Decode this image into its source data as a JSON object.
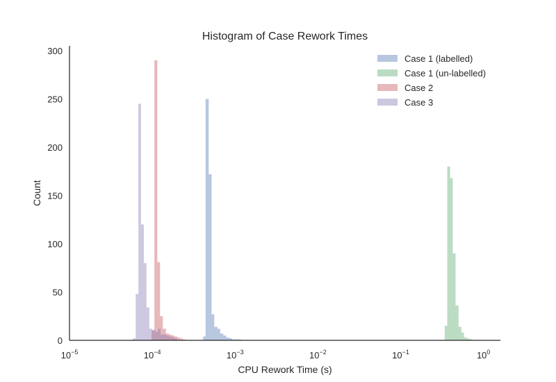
{
  "chart_data": {
    "type": "bar",
    "title": "Histogram of Case Rework Times",
    "xlabel": "CPU Rework Time (s)",
    "ylabel": "Count",
    "xscale": "log",
    "xlim": [
      1e-05,
      1.6
    ],
    "ylim": [
      0,
      305
    ],
    "x_ticks": [
      {
        "value": 1e-05,
        "base": "10",
        "exp": "−5"
      },
      {
        "value": 0.0001,
        "base": "10",
        "exp": "−4"
      },
      {
        "value": 0.001,
        "base": "10",
        "exp": "−3"
      },
      {
        "value": 0.01,
        "base": "10",
        "exp": "−2"
      },
      {
        "value": 0.1,
        "base": "10",
        "exp": "−1"
      },
      {
        "value": 1,
        "base": "10",
        "exp": "0"
      }
    ],
    "y_ticks": [
      "0",
      "50",
      "100",
      "150",
      "200",
      "250",
      "300"
    ],
    "grid": false,
    "legend_position": "top-right",
    "series": [
      {
        "name": "Case 1 (labelled)",
        "color": "#4c72b0",
        "bins": [
          [
            0.00041,
            0.00044,
            4
          ],
          [
            0.00044,
            0.00048,
            250
          ],
          [
            0.00048,
            0.00052,
            172
          ],
          [
            0.00052,
            0.00056,
            27
          ],
          [
            0.00056,
            0.00061,
            14
          ],
          [
            0.00061,
            0.00066,
            12
          ],
          [
            0.00066,
            0.00072,
            7
          ],
          [
            0.00072,
            0.00078,
            5
          ],
          [
            0.00078,
            0.00085,
            3
          ],
          [
            0.00085,
            0.00092,
            2
          ],
          [
            0.00092,
            0.001,
            1
          ],
          [
            0.001,
            0.00109,
            1
          ],
          [
            0.00109,
            0.00118,
            1
          ]
        ]
      },
      {
        "name": "Case 1 (un-labelled)",
        "color": "#55a868",
        "bins": [
          [
            0.34,
            0.365,
            15
          ],
          [
            0.365,
            0.395,
            180
          ],
          [
            0.395,
            0.425,
            168
          ],
          [
            0.425,
            0.46,
            90
          ],
          [
            0.46,
            0.5,
            36
          ],
          [
            0.5,
            0.54,
            14
          ],
          [
            0.54,
            0.58,
            8
          ],
          [
            0.58,
            0.63,
            3
          ],
          [
            0.63,
            0.68,
            2
          ],
          [
            0.68,
            0.73,
            1
          ]
        ]
      },
      {
        "name": "Case 2",
        "color": "#c44e52",
        "bins": [
          [
            9.8e-05,
            0.000106,
            10
          ],
          [
            0.000106,
            0.000115,
            290
          ],
          [
            0.000115,
            0.000124,
            81
          ],
          [
            0.000124,
            0.000134,
            25
          ],
          [
            0.000134,
            0.000146,
            12
          ],
          [
            0.000146,
            0.000158,
            7
          ],
          [
            0.000158,
            0.000171,
            6
          ],
          [
            0.000171,
            0.000185,
            5
          ],
          [
            0.000185,
            0.0002,
            4
          ],
          [
            0.0002,
            0.000216,
            3
          ],
          [
            0.000216,
            0.000234,
            2
          ],
          [
            0.000234,
            0.000253,
            1
          ]
        ]
      },
      {
        "name": "Case 3",
        "color": "#8172b2",
        "bins": [
          [
            5.8e-05,
            6.3e-05,
            2
          ],
          [
            6.3e-05,
            6.8e-05,
            48
          ],
          [
            6.8e-05,
            7.3e-05,
            245
          ],
          [
            7.3e-05,
            7.9e-05,
            120
          ],
          [
            7.9e-05,
            8.5e-05,
            80
          ],
          [
            8.5e-05,
            9.2e-05,
            34
          ],
          [
            9.2e-05,
            0.0001,
            12
          ],
          [
            0.0001,
            0.000108,
            11
          ],
          [
            0.000108,
            0.000117,
            9
          ],
          [
            0.000117,
            0.000126,
            12
          ],
          [
            0.000126,
            0.000136,
            6
          ],
          [
            0.000136,
            0.000147,
            6
          ],
          [
            0.000147,
            0.000159,
            5
          ],
          [
            0.000159,
            0.000172,
            4
          ],
          [
            0.000172,
            0.000186,
            3
          ],
          [
            0.000186,
            0.0002,
            2
          ]
        ]
      }
    ]
  }
}
